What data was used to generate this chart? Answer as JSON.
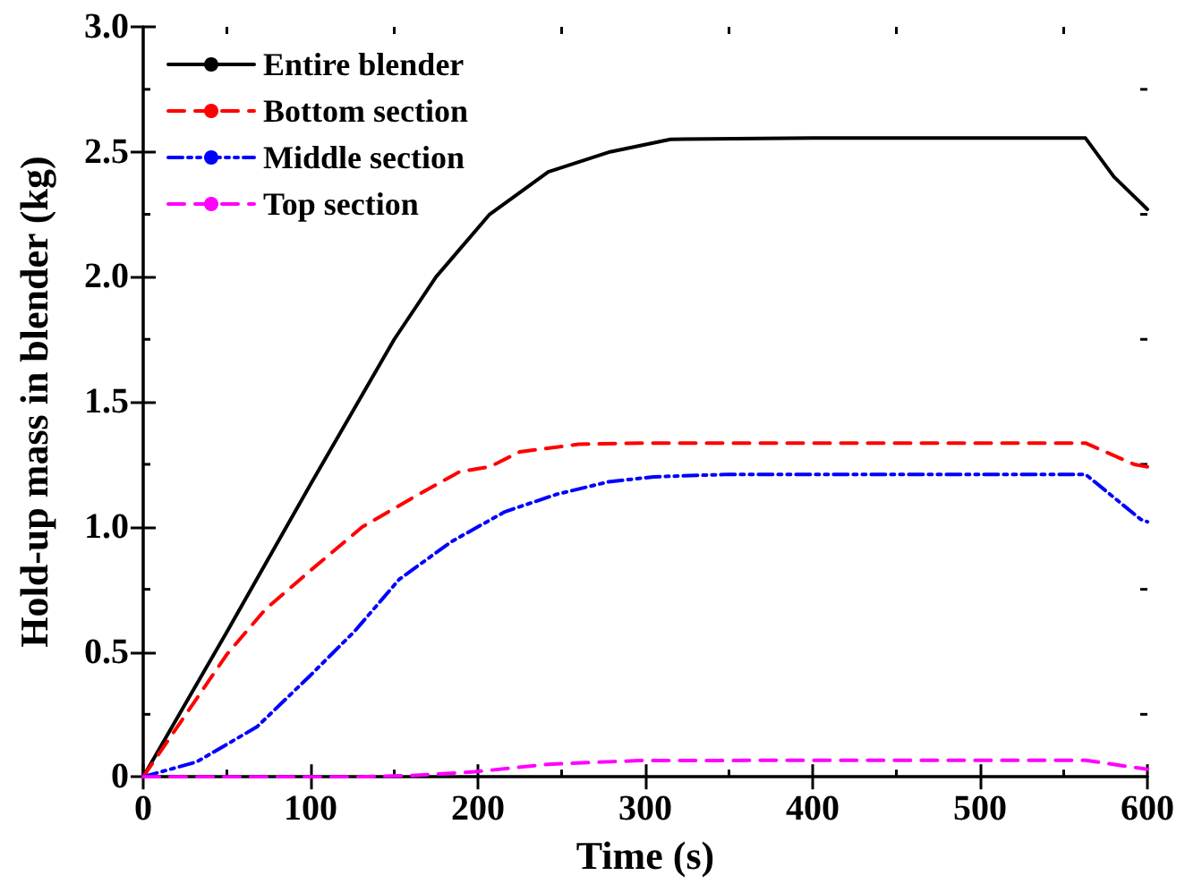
{
  "chart_data": {
    "type": "line",
    "xlabel": "Time (s)",
    "ylabel": "Hold-up mass in blender (kg)",
    "xlim": [
      0,
      600
    ],
    "xticks": [
      0,
      100,
      200,
      300,
      400,
      500,
      600
    ],
    "ylim": [
      0,
      3
    ],
    "yticks": [
      0,
      {
        "value": 0.5,
        "label": "0.5"
      },
      {
        "value": 1,
        "label": "1.0"
      },
      {
        "value": 1.5,
        "label": "1.5"
      },
      {
        "value": 2,
        "label": "2.0"
      },
      {
        "value": 2.5,
        "label": "2.5"
      },
      {
        "value": 3,
        "label": "3.0"
      }
    ],
    "grid": false,
    "legend": "top left",
    "marker": "none",
    "series": [
      {
        "name": "Entire blender",
        "color": "#000000",
        "line_style": "solid",
        "x": [
          0,
          50,
          100,
          150,
          175,
          207,
          242,
          279,
          315,
          400,
          500,
          563,
          580,
          600
        ],
        "values": [
          0,
          0.58,
          1.17,
          1.75,
          2.0,
          2.25,
          2.42,
          2.5,
          2.55,
          2.555,
          2.555,
          2.555,
          2.4,
          2.27
        ]
      },
      {
        "name": "Bottom section",
        "color": "#ff0000",
        "line_style": "dashed",
        "x": [
          0,
          50,
          73,
          99,
          131,
          162,
          189,
          207,
          225,
          260,
          296,
          350,
          400,
          450,
          500,
          563,
          592,
          600
        ],
        "values": [
          0,
          0.49,
          0.67,
          0.82,
          1.0,
          1.12,
          1.22,
          1.24,
          1.3,
          1.33,
          1.335,
          1.335,
          1.335,
          1.335,
          1.335,
          1.335,
          1.25,
          1.24
        ]
      },
      {
        "name": "Middle section",
        "color": "#0000ff",
        "line_style": "dotted",
        "x": [
          0,
          32,
          68,
          99,
          126,
          153,
          184,
          216,
          247,
          278,
          305,
          350,
          400,
          450,
          500,
          563,
          596,
          600
        ],
        "values": [
          0,
          0.06,
          0.2,
          0.4,
          0.58,
          0.79,
          0.94,
          1.06,
          1.13,
          1.18,
          1.2,
          1.21,
          1.21,
          1.21,
          1.21,
          1.21,
          1.03,
          1.02
        ]
      },
      {
        "name": "Top section",
        "color": "#ff00ff",
        "line_style": "dashed",
        "x": [
          0,
          130,
          160,
          198,
          242,
          296,
          400,
          500,
          563,
          600
        ],
        "values": [
          0,
          0,
          0.005,
          0.02,
          0.05,
          0.065,
          0.066,
          0.066,
          0.066,
          0.03
        ]
      }
    ]
  }
}
